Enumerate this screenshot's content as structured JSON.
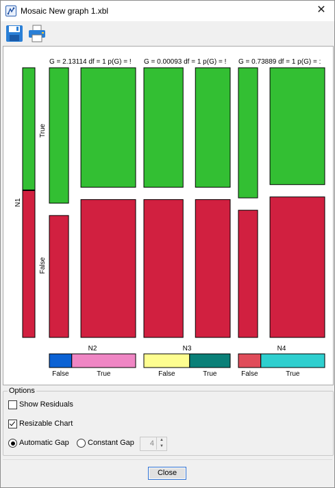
{
  "window": {
    "title": "Mosaic New graph 1.xbl",
    "close_glyph": "✕"
  },
  "toolbar": {
    "save_icon": "floppy-disk-icon",
    "print_icon": "printer-icon"
  },
  "colors": {
    "green": "#33bf33",
    "red": "#d12040",
    "n2_false": "#0b62d4",
    "n2_true": "#ef86c4",
    "n3_false": "#fefe90",
    "n3_true": "#0a8078",
    "n4_false": "#e04c5a",
    "n4_true": "#2fcfcf"
  },
  "chart_data": {
    "type": "mosaic",
    "row_variable": "N1",
    "row_categories": [
      "True",
      "False"
    ],
    "row_proportions": [
      0.46,
      0.54
    ],
    "panels": [
      {
        "variable": "N2",
        "stat_label": "G = 2.13114 df = 1 p(G) = !",
        "categories": [
          "False",
          "True"
        ],
        "column_proportions": [
          0.26,
          0.74
        ],
        "true_share": [
          0.51,
          0.45
        ]
      },
      {
        "variable": "N3",
        "stat_label": "G = 0.00093 df = 1 p(G) = !",
        "categories": [
          "False",
          "True"
        ],
        "column_proportions": [
          0.53,
          0.47
        ],
        "true_share": [
          0.45,
          0.45
        ]
      },
      {
        "variable": "N4",
        "stat_label": "G = 0.73889 df = 1 p(G) = :",
        "categories": [
          "False",
          "True"
        ],
        "column_proportions": [
          0.26,
          0.74
        ],
        "true_share": [
          0.49,
          0.44
        ]
      }
    ]
  },
  "options": {
    "legend": "Options",
    "show_residuals": "Show Residuals",
    "resizable_chart": "Resizable Chart",
    "automatic_gap": "Automatic Gap",
    "constant_gap": "Constant Gap",
    "gap_value": "4",
    "show_residuals_checked": false,
    "resizable_chart_checked": true,
    "gap_mode": "automatic"
  },
  "footer": {
    "close_label": "Close"
  }
}
